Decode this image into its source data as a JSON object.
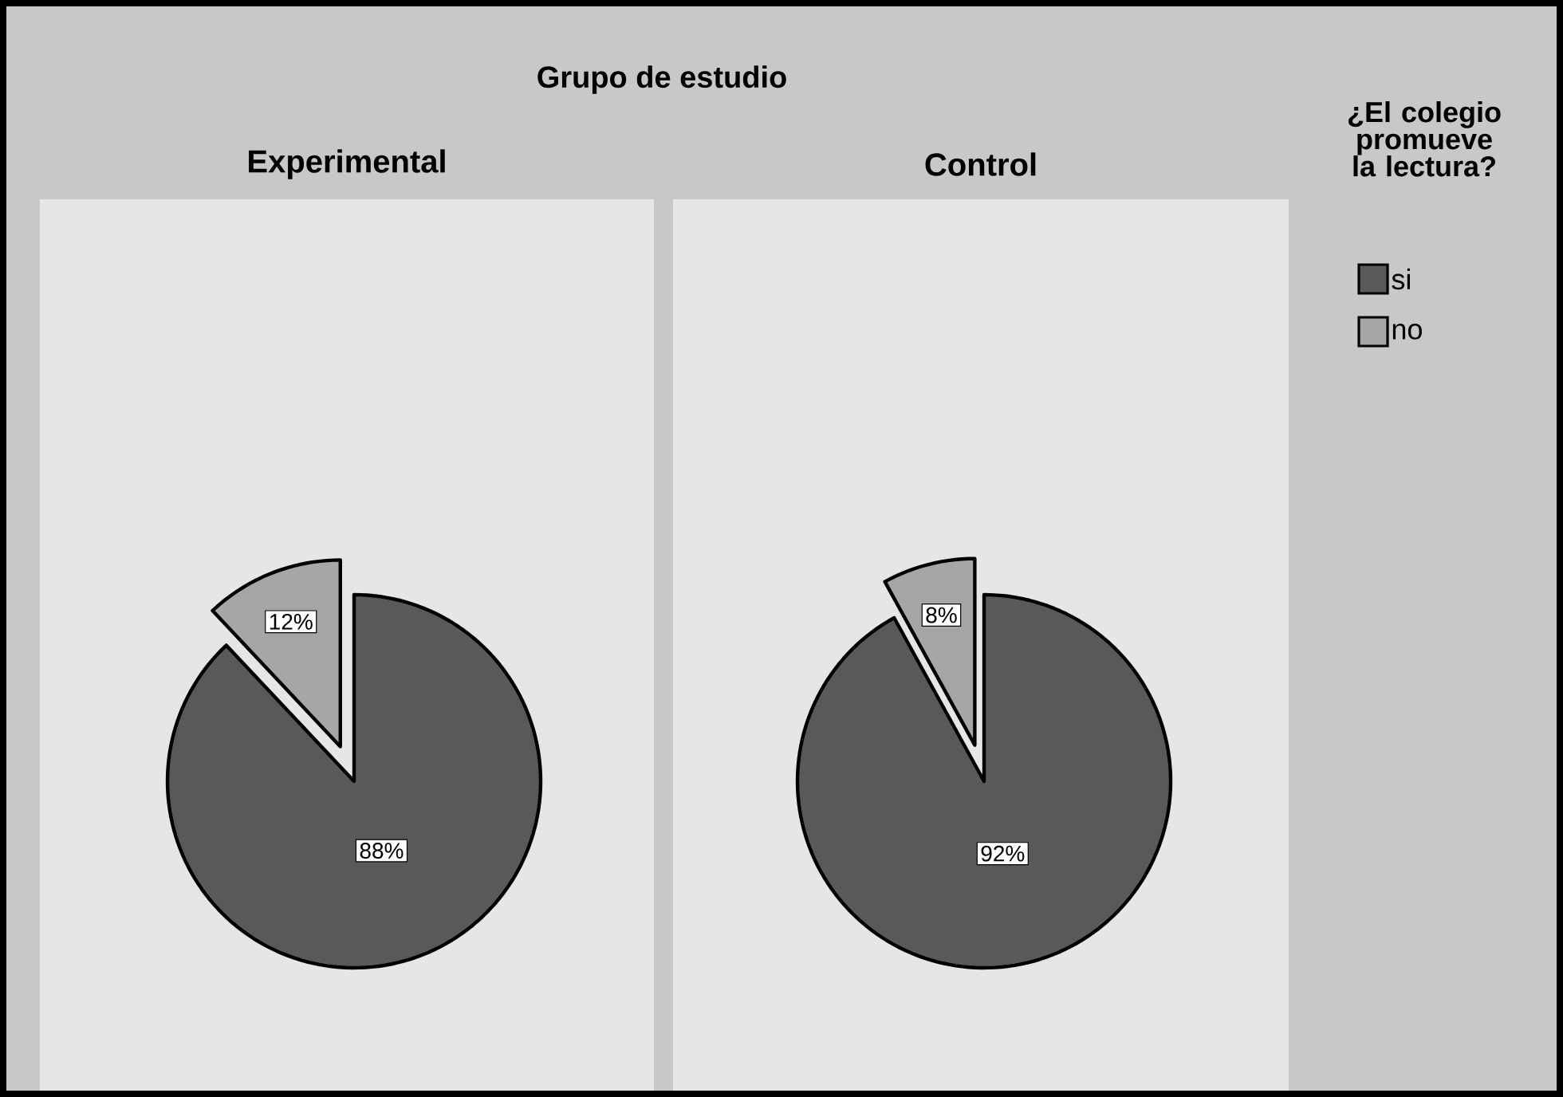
{
  "chart_data": [
    {
      "type": "pie",
      "title": "Experimental",
      "annotations": [
        "Grupo de estudio"
      ],
      "legend_title": "¿El colegio promueve la lectura?",
      "categories": [
        "si",
        "no"
      ],
      "values": [
        88,
        12
      ],
      "colors": [
        "#595959",
        "#a6a6a6"
      ],
      "value_labels": [
        "88%",
        "12%"
      ],
      "legend": "right"
    },
    {
      "type": "pie",
      "title": "Control",
      "categories": [
        null,
        null
      ],
      "values": [
        92,
        8
      ],
      "colors": [
        "#595959",
        "#a6a6a6"
      ],
      "value_labels": [
        "92%",
        "8%"
      ]
    }
  ]
}
